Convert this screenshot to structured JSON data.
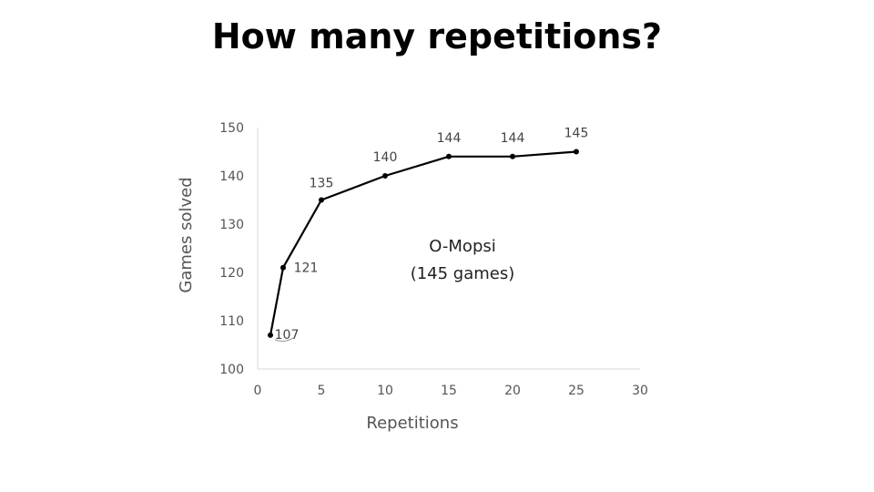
{
  "chart_data": {
    "type": "line",
    "title": "How many repetitions?",
    "xlabel": "Repetitions",
    "ylabel": "Games solved",
    "xlim": [
      0,
      30
    ],
    "ylim": [
      100,
      150
    ],
    "xticks": [
      0,
      5,
      10,
      15,
      20,
      25,
      30
    ],
    "yticks": [
      100,
      110,
      120,
      130,
      140,
      150
    ],
    "grid": false,
    "series": [
      {
        "x": [
          1,
          2,
          5,
          10,
          15,
          20,
          25
        ],
        "y": [
          107,
          121,
          135,
          140,
          144,
          144,
          145
        ]
      }
    ],
    "annotation": [
      "O-Mopsi",
      "(145 games)"
    ]
  }
}
